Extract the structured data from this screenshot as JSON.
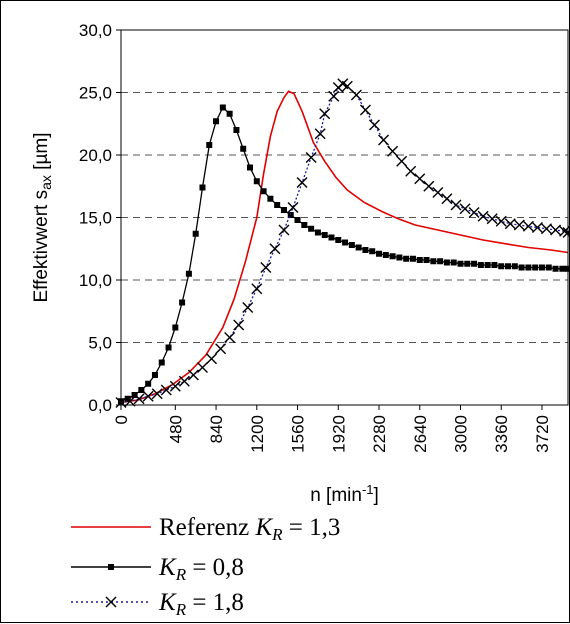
{
  "chart_data": {
    "type": "line",
    "title": "",
    "xlabel": {
      "base": "n [min",
      "sup": "-1",
      "tail": "]"
    },
    "ylabel": {
      "base": "Effektivwert s",
      "sub": "ax",
      "tail": " [µm]"
    },
    "xlim": [
      0,
      3950
    ],
    "ylim": [
      0,
      30
    ],
    "x_ticks": [
      0,
      480,
      840,
      1200,
      1560,
      1920,
      2280,
      2640,
      3000,
      3360,
      3720
    ],
    "y_ticks": [
      "0,0",
      "5,0",
      "10,0",
      "15,0",
      "20,0",
      "25,0",
      "30,0"
    ],
    "y_tick_values": [
      0,
      5,
      10,
      15,
      20,
      25,
      30
    ],
    "grid": "horizontal dashed",
    "legend_position": "bottom",
    "series": [
      {
        "name": "Referenz K_R = 1,3",
        "legend": {
          "prefix": "Referenz ",
          "k": "K",
          "sub": "R",
          "suffix": " = 1,3"
        },
        "color": "#e00000",
        "marker": "none",
        "style": "solid",
        "points": [
          [
            0,
            0.2
          ],
          [
            150,
            0.4
          ],
          [
            300,
            0.9
          ],
          [
            450,
            1.6
          ],
          [
            600,
            2.6
          ],
          [
            750,
            4.0
          ],
          [
            900,
            6.2
          ],
          [
            1000,
            8.5
          ],
          [
            1100,
            11.5
          ],
          [
            1200,
            15.0
          ],
          [
            1260,
            18.5
          ],
          [
            1320,
            21.5
          ],
          [
            1380,
            23.5
          ],
          [
            1440,
            24.6
          ],
          [
            1480,
            25.1
          ],
          [
            1530,
            24.9
          ],
          [
            1600,
            23.5
          ],
          [
            1700,
            21.0
          ],
          [
            1800,
            19.5
          ],
          [
            1900,
            18.2
          ],
          [
            2000,
            17.2
          ],
          [
            2150,
            16.2
          ],
          [
            2300,
            15.5
          ],
          [
            2450,
            14.9
          ],
          [
            2600,
            14.4
          ],
          [
            2800,
            14.0
          ],
          [
            3000,
            13.6
          ],
          [
            3200,
            13.2
          ],
          [
            3400,
            12.9
          ],
          [
            3600,
            12.6
          ],
          [
            3800,
            12.4
          ],
          [
            3950,
            12.2
          ]
        ]
      },
      {
        "name": "K_R = 0,8",
        "legend": {
          "prefix": "",
          "k": "K",
          "sub": "R",
          "suffix": " = 0,8"
        },
        "color": "#000000",
        "marker": "square",
        "style": "solid",
        "points": [
          [
            0,
            0.3
          ],
          [
            60,
            0.5
          ],
          [
            120,
            0.8
          ],
          [
            180,
            1.2
          ],
          [
            240,
            1.7
          ],
          [
            300,
            2.4
          ],
          [
            360,
            3.4
          ],
          [
            420,
            4.6
          ],
          [
            480,
            6.2
          ],
          [
            540,
            8.2
          ],
          [
            600,
            10.5
          ],
          [
            660,
            13.7
          ],
          [
            720,
            17.4
          ],
          [
            780,
            20.8
          ],
          [
            840,
            22.7
          ],
          [
            900,
            23.8
          ],
          [
            960,
            23.3
          ],
          [
            1020,
            22.0
          ],
          [
            1080,
            20.5
          ],
          [
            1140,
            19.0
          ],
          [
            1200,
            17.9
          ],
          [
            1260,
            17.1
          ],
          [
            1320,
            16.5
          ],
          [
            1380,
            16.0
          ],
          [
            1440,
            15.6
          ],
          [
            1500,
            15.2
          ],
          [
            1560,
            14.8
          ],
          [
            1620,
            14.4
          ],
          [
            1680,
            14.1
          ],
          [
            1740,
            13.8
          ],
          [
            1800,
            13.6
          ],
          [
            1860,
            13.4
          ],
          [
            1920,
            13.2
          ],
          [
            1980,
            13.0
          ],
          [
            2040,
            12.8
          ],
          [
            2100,
            12.6
          ],
          [
            2160,
            12.4
          ],
          [
            2220,
            12.3
          ],
          [
            2280,
            12.1
          ],
          [
            2340,
            12.0
          ],
          [
            2400,
            11.9
          ],
          [
            2460,
            11.8
          ],
          [
            2520,
            11.7
          ],
          [
            2580,
            11.7
          ],
          [
            2640,
            11.6
          ],
          [
            2700,
            11.6
          ],
          [
            2760,
            11.5
          ],
          [
            2820,
            11.5
          ],
          [
            2880,
            11.4
          ],
          [
            2940,
            11.4
          ],
          [
            3000,
            11.3
          ],
          [
            3060,
            11.3
          ],
          [
            3120,
            11.3
          ],
          [
            3180,
            11.2
          ],
          [
            3240,
            11.2
          ],
          [
            3300,
            11.2
          ],
          [
            3360,
            11.1
          ],
          [
            3420,
            11.1
          ],
          [
            3480,
            11.1
          ],
          [
            3540,
            11.0
          ],
          [
            3600,
            11.0
          ],
          [
            3660,
            11.0
          ],
          [
            3720,
            11.0
          ],
          [
            3780,
            11.0
          ],
          [
            3840,
            10.9
          ],
          [
            3900,
            10.9
          ],
          [
            3950,
            10.9
          ]
        ]
      },
      {
        "name": "K_R = 1,8",
        "legend": {
          "prefix": "",
          "k": "K",
          "sub": "R",
          "suffix": " = 1,8"
        },
        "color": "#1a1aa0",
        "marker": "x",
        "style": "dotted",
        "points": [
          [
            0,
            0.2
          ],
          [
            80,
            0.3
          ],
          [
            160,
            0.5
          ],
          [
            240,
            0.7
          ],
          [
            320,
            0.9
          ],
          [
            400,
            1.2
          ],
          [
            480,
            1.5
          ],
          [
            560,
            1.9
          ],
          [
            640,
            2.4
          ],
          [
            720,
            3.0
          ],
          [
            800,
            3.7
          ],
          [
            880,
            4.5
          ],
          [
            960,
            5.4
          ],
          [
            1040,
            6.4
          ],
          [
            1120,
            7.8
          ],
          [
            1200,
            9.3
          ],
          [
            1280,
            11.0
          ],
          [
            1360,
            12.5
          ],
          [
            1440,
            14.0
          ],
          [
            1520,
            15.8
          ],
          [
            1600,
            17.8
          ],
          [
            1680,
            19.8
          ],
          [
            1760,
            21.7
          ],
          [
            1800,
            23.3
          ],
          [
            1880,
            24.7
          ],
          [
            1920,
            25.4
          ],
          [
            1960,
            25.7
          ],
          [
            2000,
            25.5
          ],
          [
            2080,
            24.8
          ],
          [
            2160,
            23.6
          ],
          [
            2240,
            22.4
          ],
          [
            2320,
            21.2
          ],
          [
            2400,
            20.3
          ],
          [
            2480,
            19.5
          ],
          [
            2560,
            18.7
          ],
          [
            2640,
            18.1
          ],
          [
            2720,
            17.5
          ],
          [
            2800,
            17.0
          ],
          [
            2880,
            16.5
          ],
          [
            2960,
            16.0
          ],
          [
            3040,
            15.7
          ],
          [
            3120,
            15.4
          ],
          [
            3200,
            15.1
          ],
          [
            3280,
            14.9
          ],
          [
            3360,
            14.7
          ],
          [
            3440,
            14.5
          ],
          [
            3520,
            14.4
          ],
          [
            3600,
            14.3
          ],
          [
            3680,
            14.2
          ],
          [
            3760,
            14.1
          ],
          [
            3840,
            14.0
          ],
          [
            3920,
            13.9
          ],
          [
            3950,
            13.8
          ]
        ]
      }
    ]
  }
}
